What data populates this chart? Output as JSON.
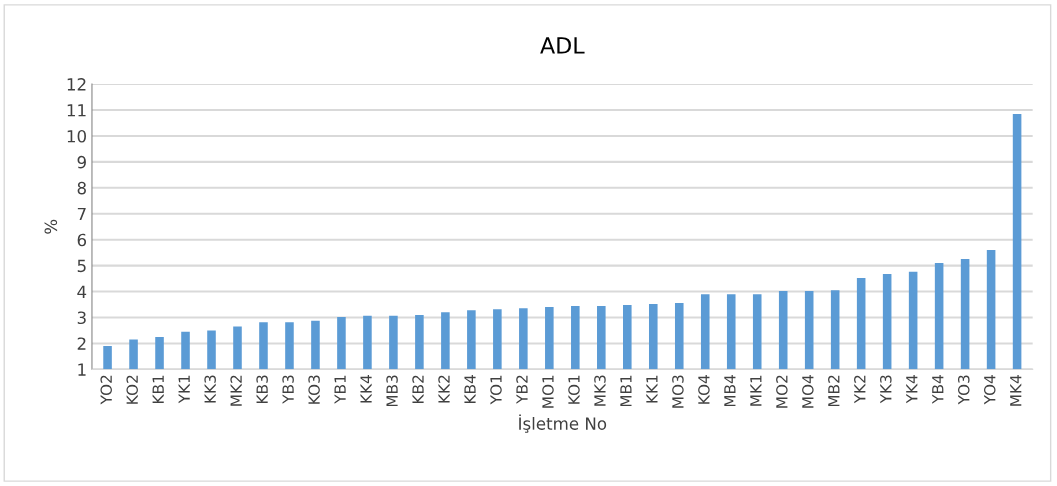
{
  "chart_data": {
    "type": "bar",
    "title": "ADL",
    "xlabel": "İşletme No",
    "ylabel": "%",
    "categories": [
      "YO2",
      "KO2",
      "KB1",
      "YK1",
      "KK3",
      "MK2",
      "KB3",
      "YB3",
      "KO3",
      "YB1",
      "KK4",
      "MB3",
      "KB2",
      "KK2",
      "KB4",
      "YO1",
      "YB2",
      "MO1",
      "KO1",
      "MK3",
      "MB1",
      "KK1",
      "MO3",
      "KO4",
      "MB4",
      "MK1",
      "MO2",
      "MO4",
      "MB2",
      "YK2",
      "YK3",
      "YK4",
      "YB4",
      "YO3",
      "YO4",
      "MK4"
    ],
    "values": [
      1.9,
      2.15,
      2.25,
      2.45,
      2.5,
      2.65,
      2.82,
      2.82,
      2.87,
      3.02,
      3.07,
      3.07,
      3.1,
      3.2,
      3.28,
      3.32,
      3.36,
      3.4,
      3.44,
      3.44,
      3.48,
      3.52,
      3.56,
      3.9,
      3.9,
      3.9,
      4.02,
      4.02,
      4.05,
      4.52,
      4.68,
      4.76,
      5.1,
      5.26,
      5.6,
      10.85
    ],
    "color": "#5b9bd5",
    "ylim": [
      1,
      12
    ],
    "yticks": [
      1,
      2,
      3,
      4,
      5,
      6,
      7,
      8,
      9,
      10,
      11,
      12
    ],
    "grid": "y"
  }
}
